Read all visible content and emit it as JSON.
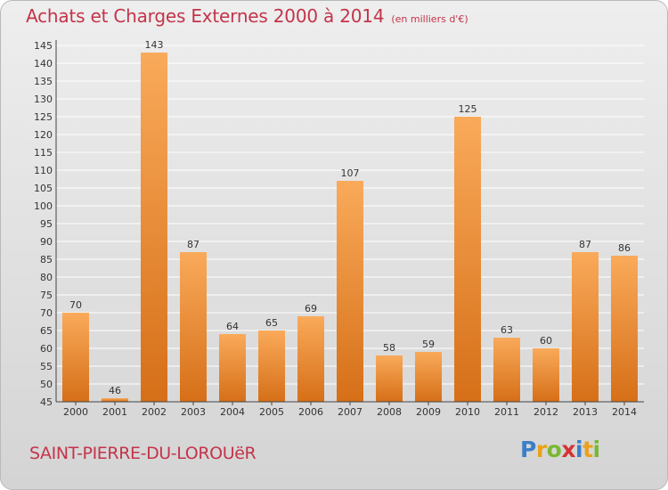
{
  "title": "Achats et Charges Externes 2000 à 2014",
  "subtitle": "(en milliers d'€)",
  "place_name": "SAINT-PIERRE-DU-LOROUëR",
  "logo": {
    "text": "Proxiti",
    "letters": [
      {
        "ch": "P",
        "color": "#3a7fc8"
      },
      {
        "ch": "r",
        "color": "#e8a21c"
      },
      {
        "ch": "o",
        "color": "#79b832"
      },
      {
        "ch": "x",
        "color": "#d63232"
      },
      {
        "ch": "i",
        "color": "#3a7fc8"
      },
      {
        "ch": "t",
        "color": "#e8a21c"
      },
      {
        "ch": "i",
        "color": "#79b832"
      }
    ]
  },
  "colors": {
    "title": "#c4344a",
    "bar_light": "#f9aa5a",
    "bar_dark": "#d66f18",
    "grid": "#ffffff",
    "axis": "#444444"
  },
  "chart_data": {
    "type": "bar",
    "title": "Achats et Charges Externes 2000 à 2014",
    "subtitle": "(en milliers d'€)",
    "categories": [
      "2000",
      "2001",
      "2002",
      "2003",
      "2004",
      "2005",
      "2006",
      "2007",
      "2008",
      "2009",
      "2010",
      "2011",
      "2012",
      "2013",
      "2014"
    ],
    "values": [
      70,
      46,
      143,
      87,
      64,
      65,
      69,
      107,
      58,
      59,
      125,
      63,
      60,
      87,
      86
    ],
    "xlabel": "",
    "ylabel": "",
    "ylim": [
      45,
      145
    ],
    "yticks": [
      45,
      50,
      55,
      60,
      65,
      70,
      75,
      80,
      85,
      90,
      95,
      100,
      105,
      110,
      115,
      120,
      125,
      130,
      135,
      140,
      145
    ],
    "grid": true,
    "data_labels": true
  }
}
